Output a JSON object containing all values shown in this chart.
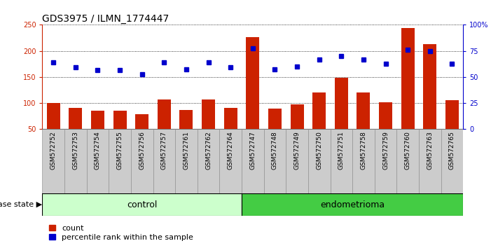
{
  "title": "GDS3975 / ILMN_1774447",
  "categories": [
    "GSM572752",
    "GSM572753",
    "GSM572754",
    "GSM572755",
    "GSM572756",
    "GSM572757",
    "GSM572761",
    "GSM572762",
    "GSM572764",
    "GSM572747",
    "GSM572748",
    "GSM572749",
    "GSM572750",
    "GSM572751",
    "GSM572758",
    "GSM572759",
    "GSM572760",
    "GSM572763",
    "GSM572765"
  ],
  "control_count": 9,
  "red_values": [
    100,
    90,
    85,
    85,
    78,
    107,
    86,
    107,
    91,
    226,
    89,
    97,
    120,
    148,
    120,
    101,
    244,
    213,
    105
  ],
  "blue_values": [
    178,
    168,
    163,
    163,
    155,
    178,
    165,
    178,
    168,
    205,
    165,
    170,
    183,
    190,
    183,
    175,
    202,
    200,
    175
  ],
  "ylim_left": [
    50,
    250
  ],
  "ylim_right": [
    0,
    100
  ],
  "left_ticks": [
    50,
    100,
    150,
    200,
    250
  ],
  "right_ticks": [
    0,
    25,
    50,
    75,
    100
  ],
  "right_tick_labels": [
    "0",
    "25",
    "50",
    "75",
    "100%"
  ],
  "bar_color": "#cc2200",
  "dot_color": "#0000cc",
  "control_bg": "#ccffcc",
  "endometrioma_bg": "#44cc44",
  "tick_bg": "#cccccc",
  "control_label": "control",
  "endometrioma_label": "endometrioma",
  "disease_state_label": "disease state",
  "legend_count": "count",
  "legend_percentile": "percentile rank within the sample",
  "title_fontsize": 10,
  "tick_fontsize": 7,
  "label_fontsize": 9,
  "bar_bottom": 50
}
